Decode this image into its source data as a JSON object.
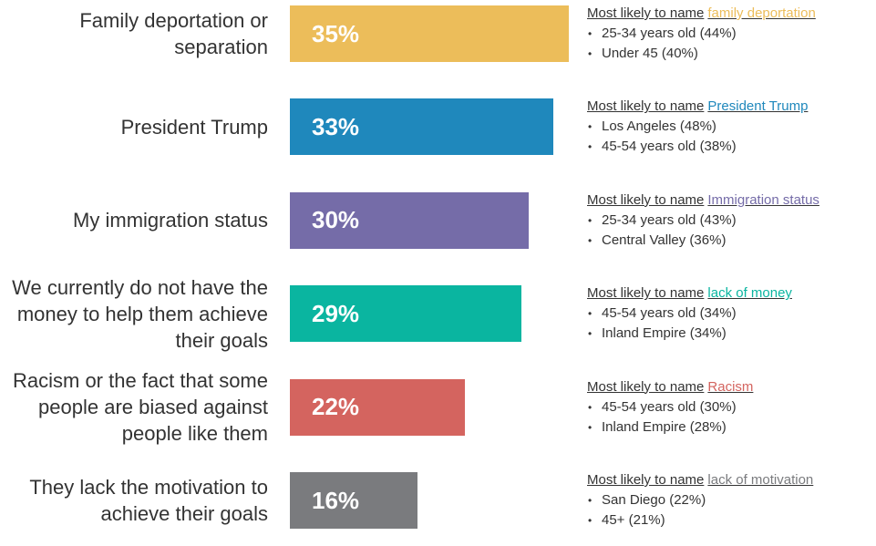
{
  "chart_data": {
    "type": "bar",
    "orientation": "horizontal",
    "categories": [
      "Family deportation or separation",
      "President Trump",
      "My immigration status",
      "We currently do not have the money to help them achieve their goals",
      "Racism or the fact that some people are biased against people like them",
      "They lack the motivation to achieve their goals"
    ],
    "values": [
      35,
      33,
      30,
      29,
      22,
      16
    ],
    "value_labels": [
      "35%",
      "33%",
      "30%",
      "29%",
      "22%",
      "16%"
    ],
    "colors": [
      "#ecbd5a",
      "#1f88bc",
      "#756ca8",
      "#0ab5a0",
      "#d4645f",
      "#7a7b7e"
    ],
    "annotations": [
      {
        "prefix": "Most likely to name",
        "highlight": "family deportation",
        "items": [
          "25-34 years old (44%)",
          "Under 45 (40%)"
        ]
      },
      {
        "prefix": "Most likely to name",
        "highlight": "President Trump",
        "items": [
          "Los Angeles (48%)",
          "45-54 years old (38%)"
        ]
      },
      {
        "prefix": "Most likely to name",
        "highlight": "Immigration status",
        "items": [
          "25-34 years old (43%)",
          "Central Valley (36%)"
        ]
      },
      {
        "prefix": "Most likely to name",
        "highlight": "lack of money",
        "items": [
          "45-54 years old (34%)",
          "Inland Empire (34%)"
        ]
      },
      {
        "prefix": "Most likely to name",
        "highlight": "Racism",
        "items": [
          "45-54 years old (30%)",
          "Inland Empire (28%)"
        ]
      },
      {
        "prefix": "Most likely to name",
        "highlight": "lack of motivation",
        "items": [
          "San Diego (22%)",
          "45+ (21%)"
        ]
      }
    ]
  }
}
